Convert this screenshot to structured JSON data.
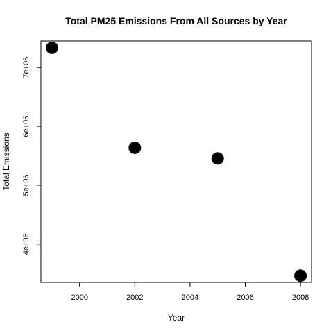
{
  "chart_data": {
    "type": "scatter",
    "title": "Total PM25 Emissions From All Sources by Year",
    "xlabel": "Year",
    "ylabel": "Total Emissions",
    "x": [
      1999,
      2002,
      2005,
      2008
    ],
    "y": [
      7332967,
      5635780,
      5454703,
      3464206
    ],
    "xlim": [
      1998.6,
      2008.4
    ],
    "ylim": [
      3350000,
      7450000
    ],
    "x_ticks": [
      2000,
      2002,
      2004,
      2006,
      2008
    ],
    "x_tick_labels": [
      "2000",
      "2002",
      "2004",
      "2006",
      "2008"
    ],
    "y_ticks": [
      4000000,
      5000000,
      6000000,
      7000000
    ],
    "y_tick_labels": [
      "4e+06",
      "5e+06",
      "6e+06",
      "7e+06"
    ],
    "grid": false,
    "legend": "none",
    "marker_color": "#000000",
    "marker_shape": "filled-circle"
  }
}
